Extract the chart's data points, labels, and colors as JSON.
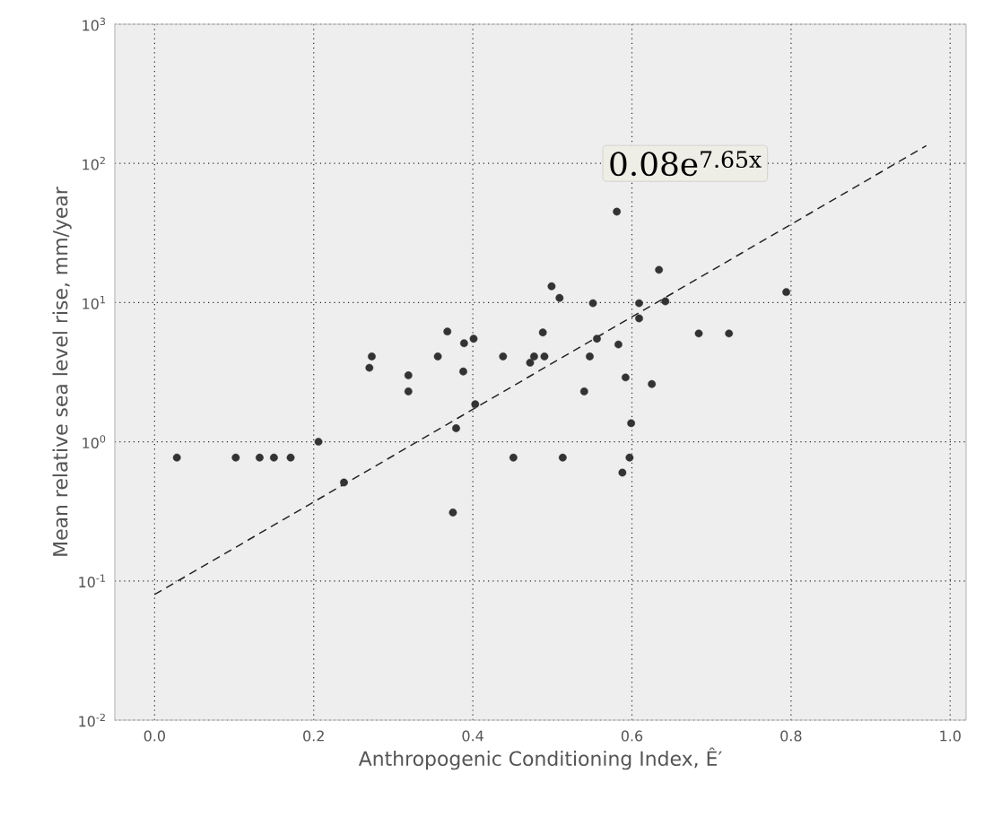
{
  "chart_data": {
    "type": "scatter",
    "xlabel": "Anthropogenic Conditioning Index, Ê′",
    "ylabel": "Mean relative sea level rise, mm/year",
    "log": "y",
    "grid": true,
    "xlim": [
      -0.05,
      1.02
    ],
    "ylim": [
      0.01,
      1000
    ],
    "xticks": [
      {
        "value": 0,
        "label": "0.0"
      },
      {
        "value": 0.2,
        "label": "0.2"
      },
      {
        "value": 0.4,
        "label": "0.4"
      },
      {
        "value": 0.6,
        "label": "0.6"
      },
      {
        "value": 0.8,
        "label": "0.8"
      },
      {
        "value": 1.0,
        "label": "1.0"
      }
    ],
    "yticks": [
      {
        "value": 0.01,
        "label": "10$^{-2}$"
      },
      {
        "value": 0.1,
        "label": "10$^{-1}$"
      },
      {
        "value": 1,
        "label": "10$^{0}$"
      },
      {
        "value": 10,
        "label": "10$^{1}$"
      },
      {
        "value": 100,
        "label": "10$^{2}$"
      },
      {
        "value": 1000,
        "label": "10$^{3}$"
      }
    ],
    "annotations": [
      "0.08e$^{7.65x}$"
    ],
    "series": [
      {
        "color": "#333333",
        "marker": "circle",
        "x": [
          0.028,
          0.102,
          0.132,
          0.15,
          0.171,
          0.206,
          0.238,
          0.27,
          0.273,
          0.319,
          0.319,
          0.356,
          0.368,
          0.379,
          0.375,
          0.389,
          0.388,
          0.401,
          0.403,
          0.438,
          0.451,
          0.472,
          0.477,
          0.488,
          0.49,
          0.499,
          0.509,
          0.513,
          0.54,
          0.547,
          0.551,
          0.556,
          0.581,
          0.583,
          0.588,
          0.592,
          0.597,
          0.599,
          0.609,
          0.609,
          0.625,
          0.634,
          0.642,
          0.684,
          0.722,
          0.794
        ],
        "values": [
          0.77,
          0.77,
          0.77,
          0.77,
          0.77,
          1.0,
          0.51,
          3.4,
          4.1,
          3.0,
          2.3,
          4.1,
          6.2,
          1.25,
          0.31,
          5.1,
          3.2,
          5.5,
          1.86,
          4.1,
          0.77,
          3.7,
          4.1,
          6.1,
          4.1,
          13.1,
          10.8,
          0.77,
          2.3,
          4.1,
          9.9,
          5.5,
          45,
          5.0,
          0.6,
          2.9,
          0.77,
          1.36,
          9.9,
          7.7,
          2.6,
          17.2,
          10.2,
          6.0,
          6.0,
          11.9
        ]
      },
      {
        "type": "line",
        "color": "#222222",
        "line_style": "dashed",
        "marker": "none",
        "x": [
          0,
          0.97
        ],
        "values": [
          0.08,
          134
        ]
      }
    ]
  }
}
